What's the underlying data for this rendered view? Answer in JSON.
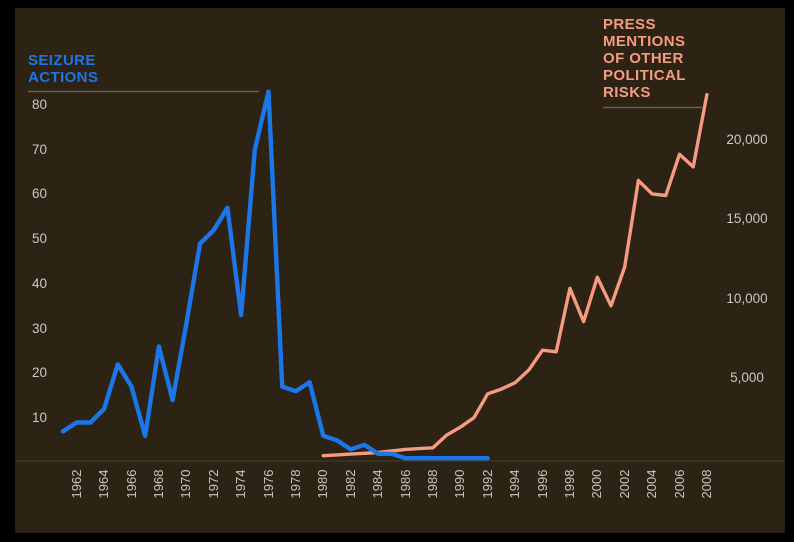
{
  "titles": {
    "left": "SEIZURE\nACTIONS",
    "right": "PRESS\nMENTIONS\nOF OTHER\nPOLITICAL\nRISKS"
  },
  "colors": {
    "background": "#000000",
    "panel": "#2C2315",
    "seizure_line": "#1B76E8",
    "press_line": "#F59B7F",
    "tick_text": "#CDC7BF",
    "title_underline": "#6B6254",
    "axis_baseline": "#473D2F"
  },
  "chart_data": {
    "type": "line",
    "title": "",
    "grid": "off",
    "x_axis": {
      "ticks": [
        1962,
        1964,
        1966,
        1968,
        1970,
        1972,
        1974,
        1976,
        1978,
        1980,
        1982,
        1984,
        1986,
        1988,
        1990,
        1992,
        1994,
        1996,
        1998,
        2000,
        2002,
        2004,
        2006,
        2008
      ],
      "range": [
        1961,
        2008
      ],
      "tick_rotation": 90
    },
    "left_axis": {
      "label": "SEIZURE ACTIONS",
      "ticks": [
        80,
        70,
        60,
        50,
        40,
        30,
        20,
        10
      ],
      "range": [
        0,
        85
      ]
    },
    "right_axis": {
      "label": "PRESS MENTIONS OF OTHER POLITICAL RISKS",
      "tick_labels": [
        "20,000",
        "15,000",
        "10,000",
        "5,000"
      ],
      "tick_values": [
        20000,
        15000,
        10000,
        5000
      ],
      "range": [
        0,
        23000
      ]
    },
    "series": [
      {
        "name": "Seizure actions",
        "axis": "left",
        "color": "#1B76E8",
        "years": [
          1961,
          1962,
          1963,
          1964,
          1965,
          1966,
          1967,
          1968,
          1969,
          1970,
          1971,
          1972,
          1973,
          1974,
          1975,
          1976,
          1977,
          1978,
          1979,
          1980,
          1981,
          1982,
          1983,
          1984,
          1985,
          1986,
          1987,
          1988,
          1989,
          1990,
          1991,
          1992
        ],
        "values": [
          7,
          9,
          9,
          12,
          22,
          17,
          6,
          26,
          14,
          31,
          49,
          52,
          57,
          33,
          70,
          83,
          17,
          16,
          18,
          6,
          5,
          3,
          4,
          2,
          2,
          1,
          1,
          1,
          1,
          1,
          1,
          1
        ]
      },
      {
        "name": "Press mentions of other political risks",
        "axis": "right",
        "color": "#F59B7F",
        "years": [
          1980,
          1981,
          1982,
          1983,
          1984,
          1985,
          1986,
          1987,
          1988,
          1989,
          1990,
          1991,
          1992,
          1993,
          1994,
          1995,
          1996,
          1997,
          1998,
          1999,
          2000,
          2001,
          2002,
          2003,
          2004,
          2005,
          2006,
          2007,
          2008
        ],
        "values": [
          100,
          150,
          200,
          250,
          300,
          400,
          500,
          550,
          600,
          1400,
          1900,
          2500,
          4000,
          4300,
          4700,
          5500,
          6750,
          6650,
          10650,
          8550,
          11350,
          9550,
          12000,
          17450,
          16600,
          16500,
          19100,
          18300,
          22850
        ]
      }
    ]
  }
}
